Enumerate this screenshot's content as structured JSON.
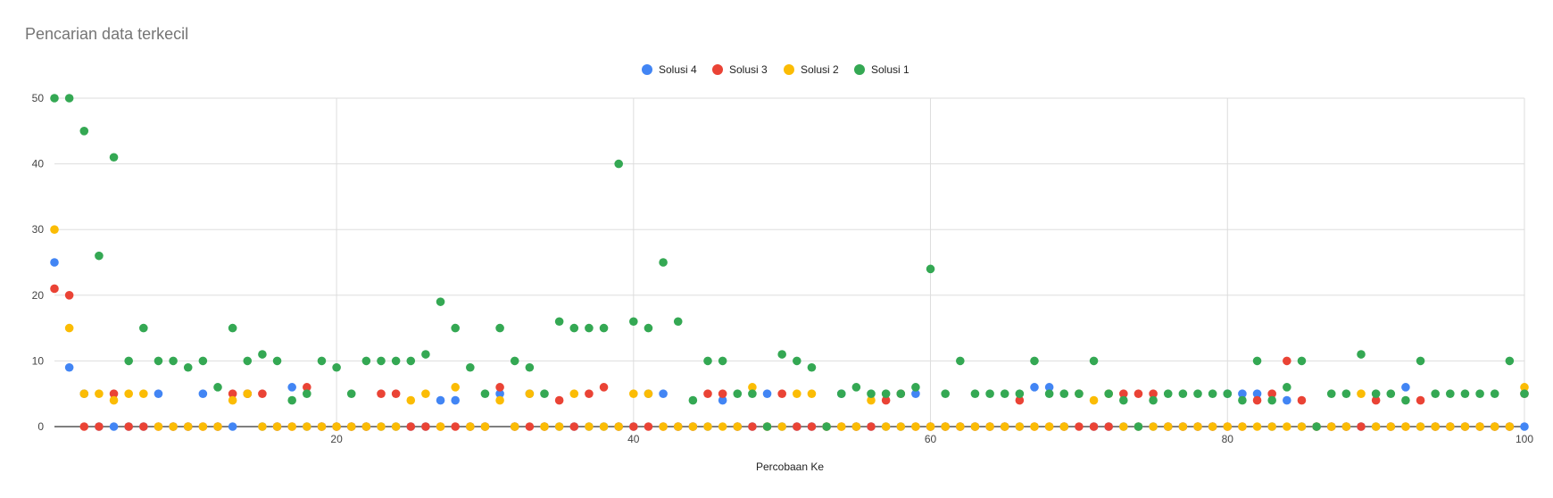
{
  "chart_data": {
    "type": "scatter",
    "title": "Pencarian data terkecil",
    "xlabel": "Percobaan Ke",
    "ylabel": "",
    "xlim": [
      1,
      100
    ],
    "ylim": [
      0,
      50
    ],
    "x_ticks": [
      20,
      40,
      60,
      80,
      100
    ],
    "y_ticks": [
      0,
      10,
      20,
      30,
      40,
      50
    ],
    "grid": true,
    "legend": "top-center",
    "series": [
      {
        "name": "Solusi 4",
        "color": "#4285F4",
        "values": [
          25,
          9,
          5,
          0,
          0,
          0,
          0,
          5,
          0,
          0,
          5,
          0,
          0,
          5,
          0,
          0,
          6,
          0,
          0,
          0,
          0,
          0,
          0,
          0,
          0,
          0,
          4,
          4,
          0,
          0,
          5,
          0,
          5,
          0,
          0,
          0,
          0,
          0,
          0,
          0,
          5,
          5,
          0,
          0,
          0,
          4,
          0,
          0,
          5,
          0,
          0,
          0,
          0,
          5,
          0,
          0,
          0,
          0,
          5,
          0,
          0,
          0,
          0,
          0,
          0,
          0,
          6,
          6,
          0,
          5,
          0,
          0,
          0,
          0,
          0,
          0,
          0,
          0,
          0,
          5,
          5,
          5,
          0,
          4,
          0,
          0,
          0,
          0,
          0,
          0,
          0,
          6,
          0,
          0,
          0,
          0,
          0,
          0,
          0,
          0
        ]
      },
      {
        "name": "Solusi 3",
        "color": "#EA4335",
        "values": [
          21,
          20,
          0,
          0,
          5,
          0,
          0,
          0,
          0,
          0,
          0,
          0,
          5,
          5,
          5,
          0,
          0,
          6,
          0,
          0,
          0,
          0,
          5,
          5,
          0,
          0,
          0,
          0,
          0,
          0,
          6,
          0,
          0,
          0,
          4,
          0,
          5,
          6,
          0,
          0,
          0,
          0,
          0,
          0,
          5,
          5,
          0,
          0,
          0,
          5,
          0,
          0,
          0,
          0,
          0,
          0,
          4,
          5,
          0,
          0,
          0,
          0,
          0,
          0,
          0,
          4,
          0,
          0,
          0,
          0,
          0,
          0,
          5,
          5,
          5,
          0,
          0,
          0,
          0,
          0,
          0,
          4,
          5,
          10,
          4,
          0,
          0,
          0,
          0,
          4,
          0,
          0,
          4,
          0,
          0,
          0,
          0,
          0,
          0,
          5
        ]
      },
      {
        "name": "Solusi 2",
        "color": "#FBBC04",
        "values": [
          30,
          15,
          5,
          5,
          4,
          5,
          5,
          0,
          0,
          0,
          0,
          0,
          4,
          5,
          0,
          0,
          0,
          0,
          0,
          0,
          0,
          0,
          0,
          0,
          4,
          5,
          0,
          6,
          0,
          0,
          4,
          0,
          5,
          0,
          0,
          5,
          0,
          0,
          0,
          5,
          5,
          0,
          0,
          0,
          0,
          0,
          0,
          6,
          0,
          0,
          5,
          5,
          0,
          0,
          0,
          4,
          0,
          0,
          0,
          0,
          0,
          0,
          0,
          0,
          0,
          0,
          0,
          0,
          0,
          5,
          4,
          5,
          0,
          0,
          0,
          0,
          0,
          0,
          0,
          0,
          0,
          0,
          0,
          0,
          0,
          0,
          0,
          0,
          5,
          0,
          0,
          0,
          0,
          0,
          0,
          0,
          0,
          0,
          0,
          6
        ]
      },
      {
        "name": "Solusi 1",
        "color": "#34A853",
        "values": [
          50,
          50,
          45,
          26,
          41,
          10,
          15,
          10,
          10,
          9,
          10,
          6,
          15,
          10,
          11,
          10,
          4,
          5,
          10,
          9,
          5,
          10,
          10,
          10,
          10,
          11,
          19,
          15,
          9,
          5,
          15,
          10,
          9,
          5,
          16,
          15,
          15,
          15,
          40,
          16,
          15,
          25,
          16,
          4,
          10,
          10,
          5,
          5,
          0,
          11,
          10,
          9,
          0,
          5,
          6,
          5,
          5,
          5,
          6,
          24,
          5,
          10,
          5,
          5,
          5,
          5,
          10,
          5,
          5,
          5,
          10,
          5,
          4,
          0,
          4,
          5,
          5,
          5,
          5,
          5,
          4,
          10,
          4,
          6,
          10,
          0,
          5,
          5,
          11,
          5,
          5,
          4,
          10,
          5,
          5,
          5,
          5,
          5,
          10,
          5
        ]
      }
    ]
  }
}
